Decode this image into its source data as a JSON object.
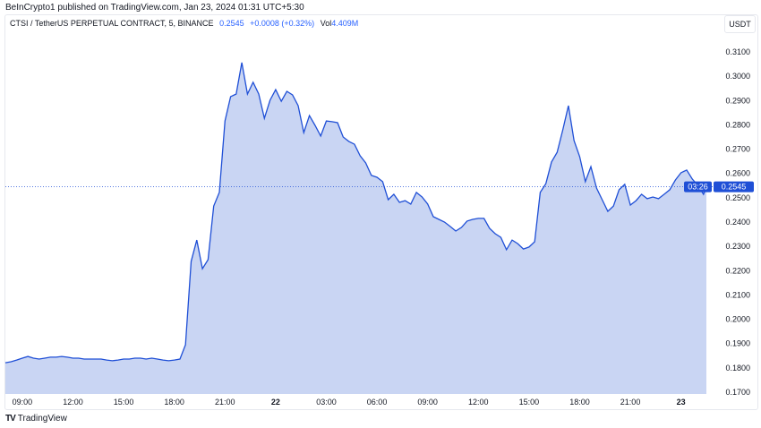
{
  "header": {
    "published": "BeInCrypto1 published on TradingView.com, Jan 23, 2024 01:31 UTC+5:30"
  },
  "legend": {
    "symbol": "CTSI / TetherUS PERPETUAL CONTRACT, 5, BINANCE",
    "price": "0.2545",
    "change": "+0.0008 (+0.32%)",
    "volume_label": "Vol",
    "volume": "4.409M"
  },
  "currency": "USDT",
  "last_price_label": {
    "price": "0.2545",
    "countdown": "03:26"
  },
  "footer": {
    "brand": "TradingView",
    "logo_icon": "tradingview-logo-icon"
  },
  "colors": {
    "line": "#1f4fd6",
    "fill": "#c9d5f3",
    "label_bg": "#1f4fd6"
  },
  "chart_data": {
    "type": "area",
    "title": "",
    "xlabel": "",
    "ylabel": "",
    "ylim": [
      0.17,
      0.31
    ],
    "y_ticks": [
      "0.3100",
      "0.3000",
      "0.2900",
      "0.2800",
      "0.2700",
      "0.2600",
      "0.2500",
      "0.2400",
      "0.2300",
      "0.2200",
      "0.2100",
      "0.2000",
      "0.1900",
      "0.1800",
      "0.1700"
    ],
    "x_ticks": [
      {
        "t": "01-21 09:00",
        "label": "09:00"
      },
      {
        "t": "01-21 12:00",
        "label": "12:00"
      },
      {
        "t": "01-21 15:00",
        "label": "15:00"
      },
      {
        "t": "01-21 18:00",
        "label": "18:00"
      },
      {
        "t": "01-21 21:00",
        "label": "21:00"
      },
      {
        "t": "01-22 00:00",
        "label": "22",
        "bold": true
      },
      {
        "t": "01-22 03:00",
        "label": "03:00"
      },
      {
        "t": "01-22 06:00",
        "label": "06:00"
      },
      {
        "t": "01-22 09:00",
        "label": "09:00"
      },
      {
        "t": "01-22 12:00",
        "label": "12:00"
      },
      {
        "t": "01-22 15:00",
        "label": "15:00"
      },
      {
        "t": "01-22 18:00",
        "label": "18:00"
      },
      {
        "t": "01-22 21:00",
        "label": "21:00"
      },
      {
        "t": "01-23 00:00",
        "label": "23",
        "bold": true
      }
    ],
    "grid": false,
    "last_price": 0.2545,
    "series": [
      {
        "points": [
          [
            "01-21 08:00",
            0.1821
          ],
          [
            "01-21 08:20",
            0.1825
          ],
          [
            "01-21 08:40",
            0.1832
          ],
          [
            "01-21 09:00",
            0.184
          ],
          [
            "01-21 09:20",
            0.1847
          ],
          [
            "01-21 09:40",
            0.184
          ],
          [
            "01-21 10:00",
            0.1836
          ],
          [
            "01-21 10:20",
            0.184
          ],
          [
            "01-21 10:40",
            0.1844
          ],
          [
            "01-21 11:00",
            0.1844
          ],
          [
            "01-21 11:20",
            0.1847
          ],
          [
            "01-21 11:40",
            0.1844
          ],
          [
            "01-21 12:00",
            0.184
          ],
          [
            "01-21 12:20",
            0.184
          ],
          [
            "01-21 12:40",
            0.1836
          ],
          [
            "01-21 13:00",
            0.1836
          ],
          [
            "01-21 13:20",
            0.1836
          ],
          [
            "01-21 13:40",
            0.1836
          ],
          [
            "01-21 14:00",
            0.1832
          ],
          [
            "01-21 14:20",
            0.1829
          ],
          [
            "01-21 14:40",
            0.1832
          ],
          [
            "01-21 15:00",
            0.1836
          ],
          [
            "01-21 15:20",
            0.1836
          ],
          [
            "01-21 15:40",
            0.184
          ],
          [
            "01-21 16:00",
            0.184
          ],
          [
            "01-21 16:20",
            0.1836
          ],
          [
            "01-21 16:40",
            0.184
          ],
          [
            "01-21 17:00",
            0.1836
          ],
          [
            "01-21 17:20",
            0.1832
          ],
          [
            "01-21 17:40",
            0.1829
          ],
          [
            "01-21 18:00",
            0.1832
          ],
          [
            "01-21 18:20",
            0.1836
          ],
          [
            "01-21 18:40",
            0.1895
          ],
          [
            "01-21 19:00",
            0.2238
          ],
          [
            "01-21 19:20",
            0.2326
          ],
          [
            "01-21 19:40",
            0.2208
          ],
          [
            "01-21 20:00",
            0.2245
          ],
          [
            "01-21 20:20",
            0.2466
          ],
          [
            "01-21 20:40",
            0.2522
          ],
          [
            "01-21 21:00",
            0.2816
          ],
          [
            "01-21 21:20",
            0.2916
          ],
          [
            "01-21 21:40",
            0.2927
          ],
          [
            "01-21 22:00",
            0.3056
          ],
          [
            "01-21 22:20",
            0.2927
          ],
          [
            "01-21 22:40",
            0.2975
          ],
          [
            "01-21 23:00",
            0.2927
          ],
          [
            "01-21 23:20",
            0.2827
          ],
          [
            "01-21 23:40",
            0.2901
          ],
          [
            "01-22 00:00",
            0.2945
          ],
          [
            "01-22 00:20",
            0.2897
          ],
          [
            "01-22 00:40",
            0.2938
          ],
          [
            "01-22 01:00",
            0.2923
          ],
          [
            "01-22 01:20",
            0.2879
          ],
          [
            "01-22 01:40",
            0.2768
          ],
          [
            "01-22 02:00",
            0.2838
          ],
          [
            "01-22 02:20",
            0.2798
          ],
          [
            "01-22 02:40",
            0.2754
          ],
          [
            "01-22 03:00",
            0.2816
          ],
          [
            "01-22 03:20",
            0.2813
          ],
          [
            "01-22 03:40",
            0.2809
          ],
          [
            "01-22 04:00",
            0.275
          ],
          [
            "01-22 04:20",
            0.2732
          ],
          [
            "01-22 04:40",
            0.272
          ],
          [
            "01-22 05:00",
            0.2673
          ],
          [
            "01-22 05:20",
            0.2643
          ],
          [
            "01-22 05:40",
            0.2592
          ],
          [
            "01-22 06:00",
            0.2584
          ],
          [
            "01-22 06:20",
            0.2566
          ],
          [
            "01-22 06:40",
            0.2492
          ],
          [
            "01-22 07:00",
            0.2514
          ],
          [
            "01-22 07:20",
            0.2481
          ],
          [
            "01-22 07:40",
            0.2488
          ],
          [
            "01-22 08:00",
            0.2474
          ],
          [
            "01-22 08:20",
            0.2522
          ],
          [
            "01-22 08:40",
            0.2503
          ],
          [
            "01-22 09:00",
            0.2474
          ],
          [
            "01-22 09:20",
            0.2422
          ],
          [
            "01-22 09:40",
            0.2411
          ],
          [
            "01-22 10:00",
            0.24
          ],
          [
            "01-22 10:20",
            0.2382
          ],
          [
            "01-22 10:40",
            0.2363
          ],
          [
            "01-22 11:00",
            0.2378
          ],
          [
            "01-22 11:20",
            0.2404
          ],
          [
            "01-22 11:40",
            0.2411
          ],
          [
            "01-22 12:00",
            0.2415
          ],
          [
            "01-22 12:20",
            0.2415
          ],
          [
            "01-22 12:40",
            0.2374
          ],
          [
            "01-22 13:00",
            0.2352
          ],
          [
            "01-22 13:20",
            0.2337
          ],
          [
            "01-22 13:40",
            0.2286
          ],
          [
            "01-22 14:00",
            0.2326
          ],
          [
            "01-22 14:20",
            0.2311
          ],
          [
            "01-22 14:40",
            0.2289
          ],
          [
            "01-22 15:00",
            0.2297
          ],
          [
            "01-22 15:20",
            0.2319
          ],
          [
            "01-22 15:40",
            0.2522
          ],
          [
            "01-22 16:00",
            0.2558
          ],
          [
            "01-22 16:20",
            0.2647
          ],
          [
            "01-22 16:40",
            0.2687
          ],
          [
            "01-22 17:00",
            0.2779
          ],
          [
            "01-22 17:20",
            0.2879
          ],
          [
            "01-22 17:40",
            0.2735
          ],
          [
            "01-22 18:00",
            0.2669
          ],
          [
            "01-22 18:20",
            0.2566
          ],
          [
            "01-22 18:40",
            0.2628
          ],
          [
            "01-22 19:00",
            0.254
          ],
          [
            "01-22 19:20",
            0.2492
          ],
          [
            "01-22 19:40",
            0.2444
          ],
          [
            "01-22 20:00",
            0.2466
          ],
          [
            "01-22 20:20",
            0.2533
          ],
          [
            "01-22 20:40",
            0.2555
          ],
          [
            "01-22 21:00",
            0.247
          ],
          [
            "01-22 21:20",
            0.2488
          ],
          [
            "01-22 21:40",
            0.2514
          ],
          [
            "01-22 22:00",
            0.2496
          ],
          [
            "01-22 22:20",
            0.2503
          ],
          [
            "01-22 22:40",
            0.2496
          ],
          [
            "01-22 23:00",
            0.2514
          ],
          [
            "01-22 23:20",
            0.2533
          ],
          [
            "01-22 23:40",
            0.2573
          ],
          [
            "01-23 00:00",
            0.2603
          ],
          [
            "01-23 00:20",
            0.2614
          ],
          [
            "01-23 00:40",
            0.2577
          ],
          [
            "01-23 01:00",
            0.2551
          ],
          [
            "01-23 01:20",
            0.2514
          ],
          [
            "01-23 01:30",
            0.2545
          ]
        ]
      }
    ]
  }
}
